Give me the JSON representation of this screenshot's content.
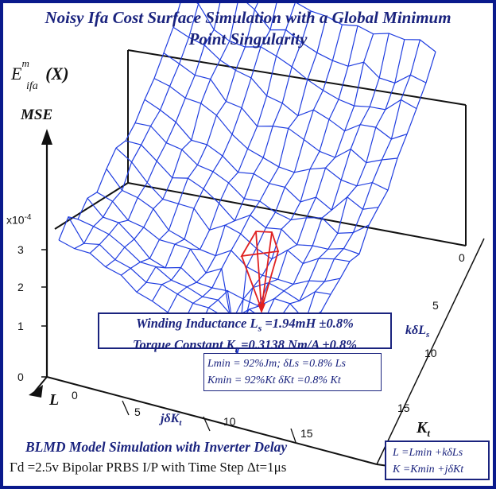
{
  "chart_data": {
    "type": "surface",
    "title_line1": "Noisy Ifa Cost Surface Simulation with a Global Minimum",
    "title_line2": "Point Singularity",
    "zlabel": "MSE",
    "zaxis_function": "E",
    "zaxis_sup": "m",
    "zaxis_sub": "ifa",
    "zaxis_arg": "(X)",
    "zaxis_scale": "x10",
    "zaxis_scale_exp": "-4",
    "z_ticks": [
      "0",
      "1",
      "2",
      "3"
    ],
    "j_ticks": [
      "0",
      "5",
      "10",
      "15"
    ],
    "k_ticks": [
      "0",
      "5",
      "10",
      "15"
    ],
    "j_axis_label": "jδK",
    "j_axis_sub": "t",
    "k_axis_label": "kδL",
    "k_axis_sub": "s",
    "L_axis_label": "L",
    "Kt_axis_label": "K",
    "Kt_axis_sub": "t",
    "grid": "16x16 wireframe",
    "minimum_point": {
      "j": 9,
      "k": 4
    },
    "surface_color": "#1f3de0",
    "spike_color": "#e02020"
  },
  "result_box": {
    "line1_prefix": "Winding Inductance ",
    "line1_var": "L",
    "line1_sub": "s",
    "line1_value": " =1.94mH ±0.8%",
    "line2_prefix": "Torque Constant ",
    "line2_var": "K",
    "line2_sub": "t",
    "line2_value": " =0.3138 Nm/A ±0.8%"
  },
  "param_box": {
    "line1": "Lmin = 92%Jm;  δLs =0.8% Ls",
    "line2": "Kmin = 92%Kt δKt =0.8% Kt"
  },
  "formula_box": {
    "line1": "L =Lmin +kδLs",
    "line2": "K =Kmin +jδKt"
  },
  "footer": {
    "line1": "BLMD Model Simulation with Inverter Delay",
    "line2": "Γd =2.5v Bipolar PRBS I/P with Time Step Δt=1μs"
  }
}
